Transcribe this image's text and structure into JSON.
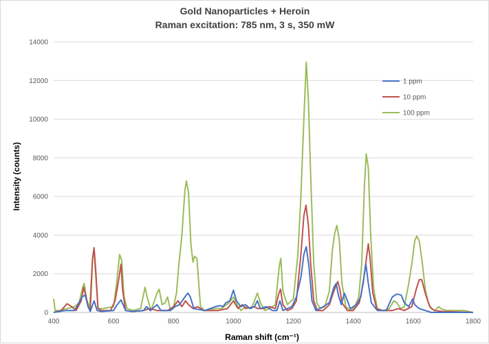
{
  "chart_data": {
    "type": "line",
    "title": "Gold Nanoparticles + Heroin",
    "subtitle": "Raman excitation: 785 nm, 3 s, 350 mW",
    "xlabel": "Raman shift (cm⁻¹)",
    "ylabel": "Intensity (counts)",
    "xlim": [
      400,
      1800
    ],
    "ylim": [
      0,
      14000
    ],
    "x_ticks": [
      "400",
      "600",
      "800",
      "1000",
      "1200",
      "1400",
      "1600",
      "1800"
    ],
    "y_ticks": [
      "0",
      "2000",
      "4000",
      "6000",
      "8000",
      "10000",
      "12000",
      "14000"
    ],
    "grid": "horizontal",
    "legend_position": "top-right",
    "series": [
      {
        "name": "1 ppm",
        "color": "#4472C4",
        "points": [
          [
            400,
            0
          ],
          [
            440,
            100
          ],
          [
            470,
            100
          ],
          [
            495,
            800
          ],
          [
            505,
            900
          ],
          [
            515,
            300
          ],
          [
            522,
            50
          ],
          [
            535,
            600
          ],
          [
            545,
            100
          ],
          [
            560,
            50
          ],
          [
            600,
            100
          ],
          [
            612,
            400
          ],
          [
            625,
            650
          ],
          [
            640,
            100
          ],
          [
            660,
            50
          ],
          [
            700,
            100
          ],
          [
            710,
            300
          ],
          [
            722,
            100
          ],
          [
            745,
            400
          ],
          [
            758,
            100
          ],
          [
            790,
            100
          ],
          [
            805,
            300
          ],
          [
            820,
            400
          ],
          [
            838,
            800
          ],
          [
            848,
            1000
          ],
          [
            856,
            800
          ],
          [
            868,
            200
          ],
          [
            885,
            150
          ],
          [
            905,
            100
          ],
          [
            940,
            300
          ],
          [
            955,
            350
          ],
          [
            965,
            300
          ],
          [
            975,
            500
          ],
          [
            988,
            600
          ],
          [
            1000,
            1150
          ],
          [
            1010,
            600
          ],
          [
            1025,
            300
          ],
          [
            1040,
            400
          ],
          [
            1055,
            200
          ],
          [
            1070,
            300
          ],
          [
            1080,
            600
          ],
          [
            1090,
            200
          ],
          [
            1110,
            300
          ],
          [
            1130,
            100
          ],
          [
            1145,
            100
          ],
          [
            1155,
            600
          ],
          [
            1165,
            100
          ],
          [
            1180,
            200
          ],
          [
            1195,
            300
          ],
          [
            1210,
            800
          ],
          [
            1225,
            1800
          ],
          [
            1235,
            3000
          ],
          [
            1243,
            3400
          ],
          [
            1252,
            2400
          ],
          [
            1262,
            600
          ],
          [
            1275,
            100
          ],
          [
            1300,
            300
          ],
          [
            1320,
            500
          ],
          [
            1335,
            1300
          ],
          [
            1343,
            1500
          ],
          [
            1350,
            900
          ],
          [
            1360,
            400
          ],
          [
            1370,
            1000
          ],
          [
            1378,
            700
          ],
          [
            1390,
            200
          ],
          [
            1410,
            400
          ],
          [
            1425,
            800
          ],
          [
            1437,
            2000
          ],
          [
            1442,
            2500
          ],
          [
            1450,
            1500
          ],
          [
            1460,
            500
          ],
          [
            1480,
            100
          ],
          [
            1510,
            100
          ],
          [
            1530,
            800
          ],
          [
            1545,
            950
          ],
          [
            1560,
            900
          ],
          [
            1570,
            500
          ],
          [
            1585,
            300
          ],
          [
            1598,
            700
          ],
          [
            1605,
            400
          ],
          [
            1620,
            200
          ],
          [
            1640,
            100
          ],
          [
            1660,
            0
          ],
          [
            1700,
            0
          ],
          [
            1800,
            0
          ]
        ]
      },
      {
        "name": "10 ppm",
        "color": "#C0504D",
        "points": [
          [
            400,
            0
          ],
          [
            425,
            100
          ],
          [
            445,
            450
          ],
          [
            460,
            300
          ],
          [
            475,
            100
          ],
          [
            492,
            600
          ],
          [
            500,
            1300
          ],
          [
            508,
            800
          ],
          [
            515,
            300
          ],
          [
            522,
            100
          ],
          [
            530,
            2800
          ],
          [
            535,
            3350
          ],
          [
            540,
            2300
          ],
          [
            548,
            200
          ],
          [
            560,
            100
          ],
          [
            590,
            100
          ],
          [
            605,
            600
          ],
          [
            615,
            1500
          ],
          [
            625,
            2500
          ],
          [
            630,
            1200
          ],
          [
            640,
            100
          ],
          [
            665,
            50
          ],
          [
            700,
            100
          ],
          [
            720,
            200
          ],
          [
            745,
            100
          ],
          [
            780,
            100
          ],
          [
            800,
            300
          ],
          [
            815,
            600
          ],
          [
            828,
            300
          ],
          [
            840,
            600
          ],
          [
            850,
            400
          ],
          [
            865,
            200
          ],
          [
            880,
            300
          ],
          [
            900,
            100
          ],
          [
            950,
            100
          ],
          [
            980,
            200
          ],
          [
            1000,
            600
          ],
          [
            1015,
            200
          ],
          [
            1030,
            400
          ],
          [
            1040,
            200
          ],
          [
            1070,
            300
          ],
          [
            1080,
            200
          ],
          [
            1100,
            200
          ],
          [
            1120,
            300
          ],
          [
            1140,
            200
          ],
          [
            1150,
            900
          ],
          [
            1157,
            1200
          ],
          [
            1165,
            400
          ],
          [
            1180,
            100
          ],
          [
            1195,
            200
          ],
          [
            1210,
            600
          ],
          [
            1225,
            3000
          ],
          [
            1235,
            5000
          ],
          [
            1242,
            5550
          ],
          [
            1250,
            4500
          ],
          [
            1258,
            2500
          ],
          [
            1268,
            600
          ],
          [
            1280,
            100
          ],
          [
            1300,
            100
          ],
          [
            1320,
            400
          ],
          [
            1335,
            1100
          ],
          [
            1348,
            1600
          ],
          [
            1355,
            1200
          ],
          [
            1362,
            500
          ],
          [
            1380,
            100
          ],
          [
            1400,
            100
          ],
          [
            1420,
            500
          ],
          [
            1433,
            1500
          ],
          [
            1442,
            2600
          ],
          [
            1450,
            3550
          ],
          [
            1456,
            2800
          ],
          [
            1465,
            1000
          ],
          [
            1478,
            200
          ],
          [
            1495,
            100
          ],
          [
            1530,
            100
          ],
          [
            1550,
            200
          ],
          [
            1570,
            100
          ],
          [
            1595,
            300
          ],
          [
            1610,
            1200
          ],
          [
            1620,
            1700
          ],
          [
            1628,
            1700
          ],
          [
            1640,
            1000
          ],
          [
            1655,
            300
          ],
          [
            1670,
            100
          ],
          [
            1700,
            50
          ],
          [
            1800,
            0
          ]
        ]
      },
      {
        "name": "100 ppm",
        "color": "#9BBB59",
        "points": [
          [
            400,
            700
          ],
          [
            405,
            100
          ],
          [
            420,
            100
          ],
          [
            445,
            200
          ],
          [
            470,
            300
          ],
          [
            485,
            500
          ],
          [
            497,
            1300
          ],
          [
            502,
            1500
          ],
          [
            510,
            700
          ],
          [
            520,
            200
          ],
          [
            530,
            2800
          ],
          [
            535,
            3150
          ],
          [
            540,
            2000
          ],
          [
            548,
            200
          ],
          [
            565,
            200
          ],
          [
            600,
            300
          ],
          [
            610,
            1500
          ],
          [
            620,
            3000
          ],
          [
            627,
            2700
          ],
          [
            635,
            800
          ],
          [
            645,
            200
          ],
          [
            665,
            100
          ],
          [
            690,
            200
          ],
          [
            705,
            1300
          ],
          [
            712,
            800
          ],
          [
            725,
            100
          ],
          [
            745,
            1000
          ],
          [
            752,
            1200
          ],
          [
            762,
            400
          ],
          [
            772,
            500
          ],
          [
            780,
            800
          ],
          [
            790,
            100
          ],
          [
            800,
            300
          ],
          [
            810,
            1000
          ],
          [
            818,
            2500
          ],
          [
            828,
            4000
          ],
          [
            838,
            6300
          ],
          [
            843,
            6800
          ],
          [
            850,
            6200
          ],
          [
            858,
            3500
          ],
          [
            865,
            2600
          ],
          [
            870,
            2900
          ],
          [
            878,
            2800
          ],
          [
            890,
            300
          ],
          [
            905,
            100
          ],
          [
            940,
            200
          ],
          [
            960,
            200
          ],
          [
            985,
            500
          ],
          [
            1000,
            800
          ],
          [
            1012,
            400
          ],
          [
            1025,
            100
          ],
          [
            1040,
            300
          ],
          [
            1060,
            200
          ],
          [
            1080,
            1000
          ],
          [
            1090,
            500
          ],
          [
            1105,
            100
          ],
          [
            1120,
            200
          ],
          [
            1140,
            400
          ],
          [
            1153,
            2400
          ],
          [
            1158,
            2800
          ],
          [
            1165,
            1100
          ],
          [
            1180,
            400
          ],
          [
            1200,
            700
          ],
          [
            1215,
            3000
          ],
          [
            1225,
            6000
          ],
          [
            1235,
            10000
          ],
          [
            1243,
            12950
          ],
          [
            1250,
            11000
          ],
          [
            1258,
            7000
          ],
          [
            1268,
            2500
          ],
          [
            1278,
            500
          ],
          [
            1290,
            200
          ],
          [
            1305,
            300
          ],
          [
            1320,
            1100
          ],
          [
            1330,
            3200
          ],
          [
            1338,
            4100
          ],
          [
            1345,
            4500
          ],
          [
            1353,
            3800
          ],
          [
            1362,
            1500
          ],
          [
            1375,
            300
          ],
          [
            1392,
            100
          ],
          [
            1405,
            300
          ],
          [
            1418,
            800
          ],
          [
            1428,
            2500
          ],
          [
            1437,
            6500
          ],
          [
            1443,
            8200
          ],
          [
            1450,
            7500
          ],
          [
            1458,
            4000
          ],
          [
            1468,
            1200
          ],
          [
            1480,
            200
          ],
          [
            1500,
            100
          ],
          [
            1520,
            200
          ],
          [
            1535,
            600
          ],
          [
            1545,
            500
          ],
          [
            1558,
            200
          ],
          [
            1570,
            300
          ],
          [
            1585,
            1500
          ],
          [
            1595,
            2500
          ],
          [
            1605,
            3700
          ],
          [
            1612,
            3950
          ],
          [
            1620,
            3700
          ],
          [
            1630,
            2600
          ],
          [
            1640,
            1200
          ],
          [
            1650,
            500
          ],
          [
            1660,
            200
          ],
          [
            1672,
            100
          ],
          [
            1685,
            300
          ],
          [
            1692,
            200
          ],
          [
            1710,
            100
          ],
          [
            1740,
            100
          ],
          [
            1770,
            100
          ],
          [
            1800,
            0
          ]
        ]
      }
    ]
  }
}
